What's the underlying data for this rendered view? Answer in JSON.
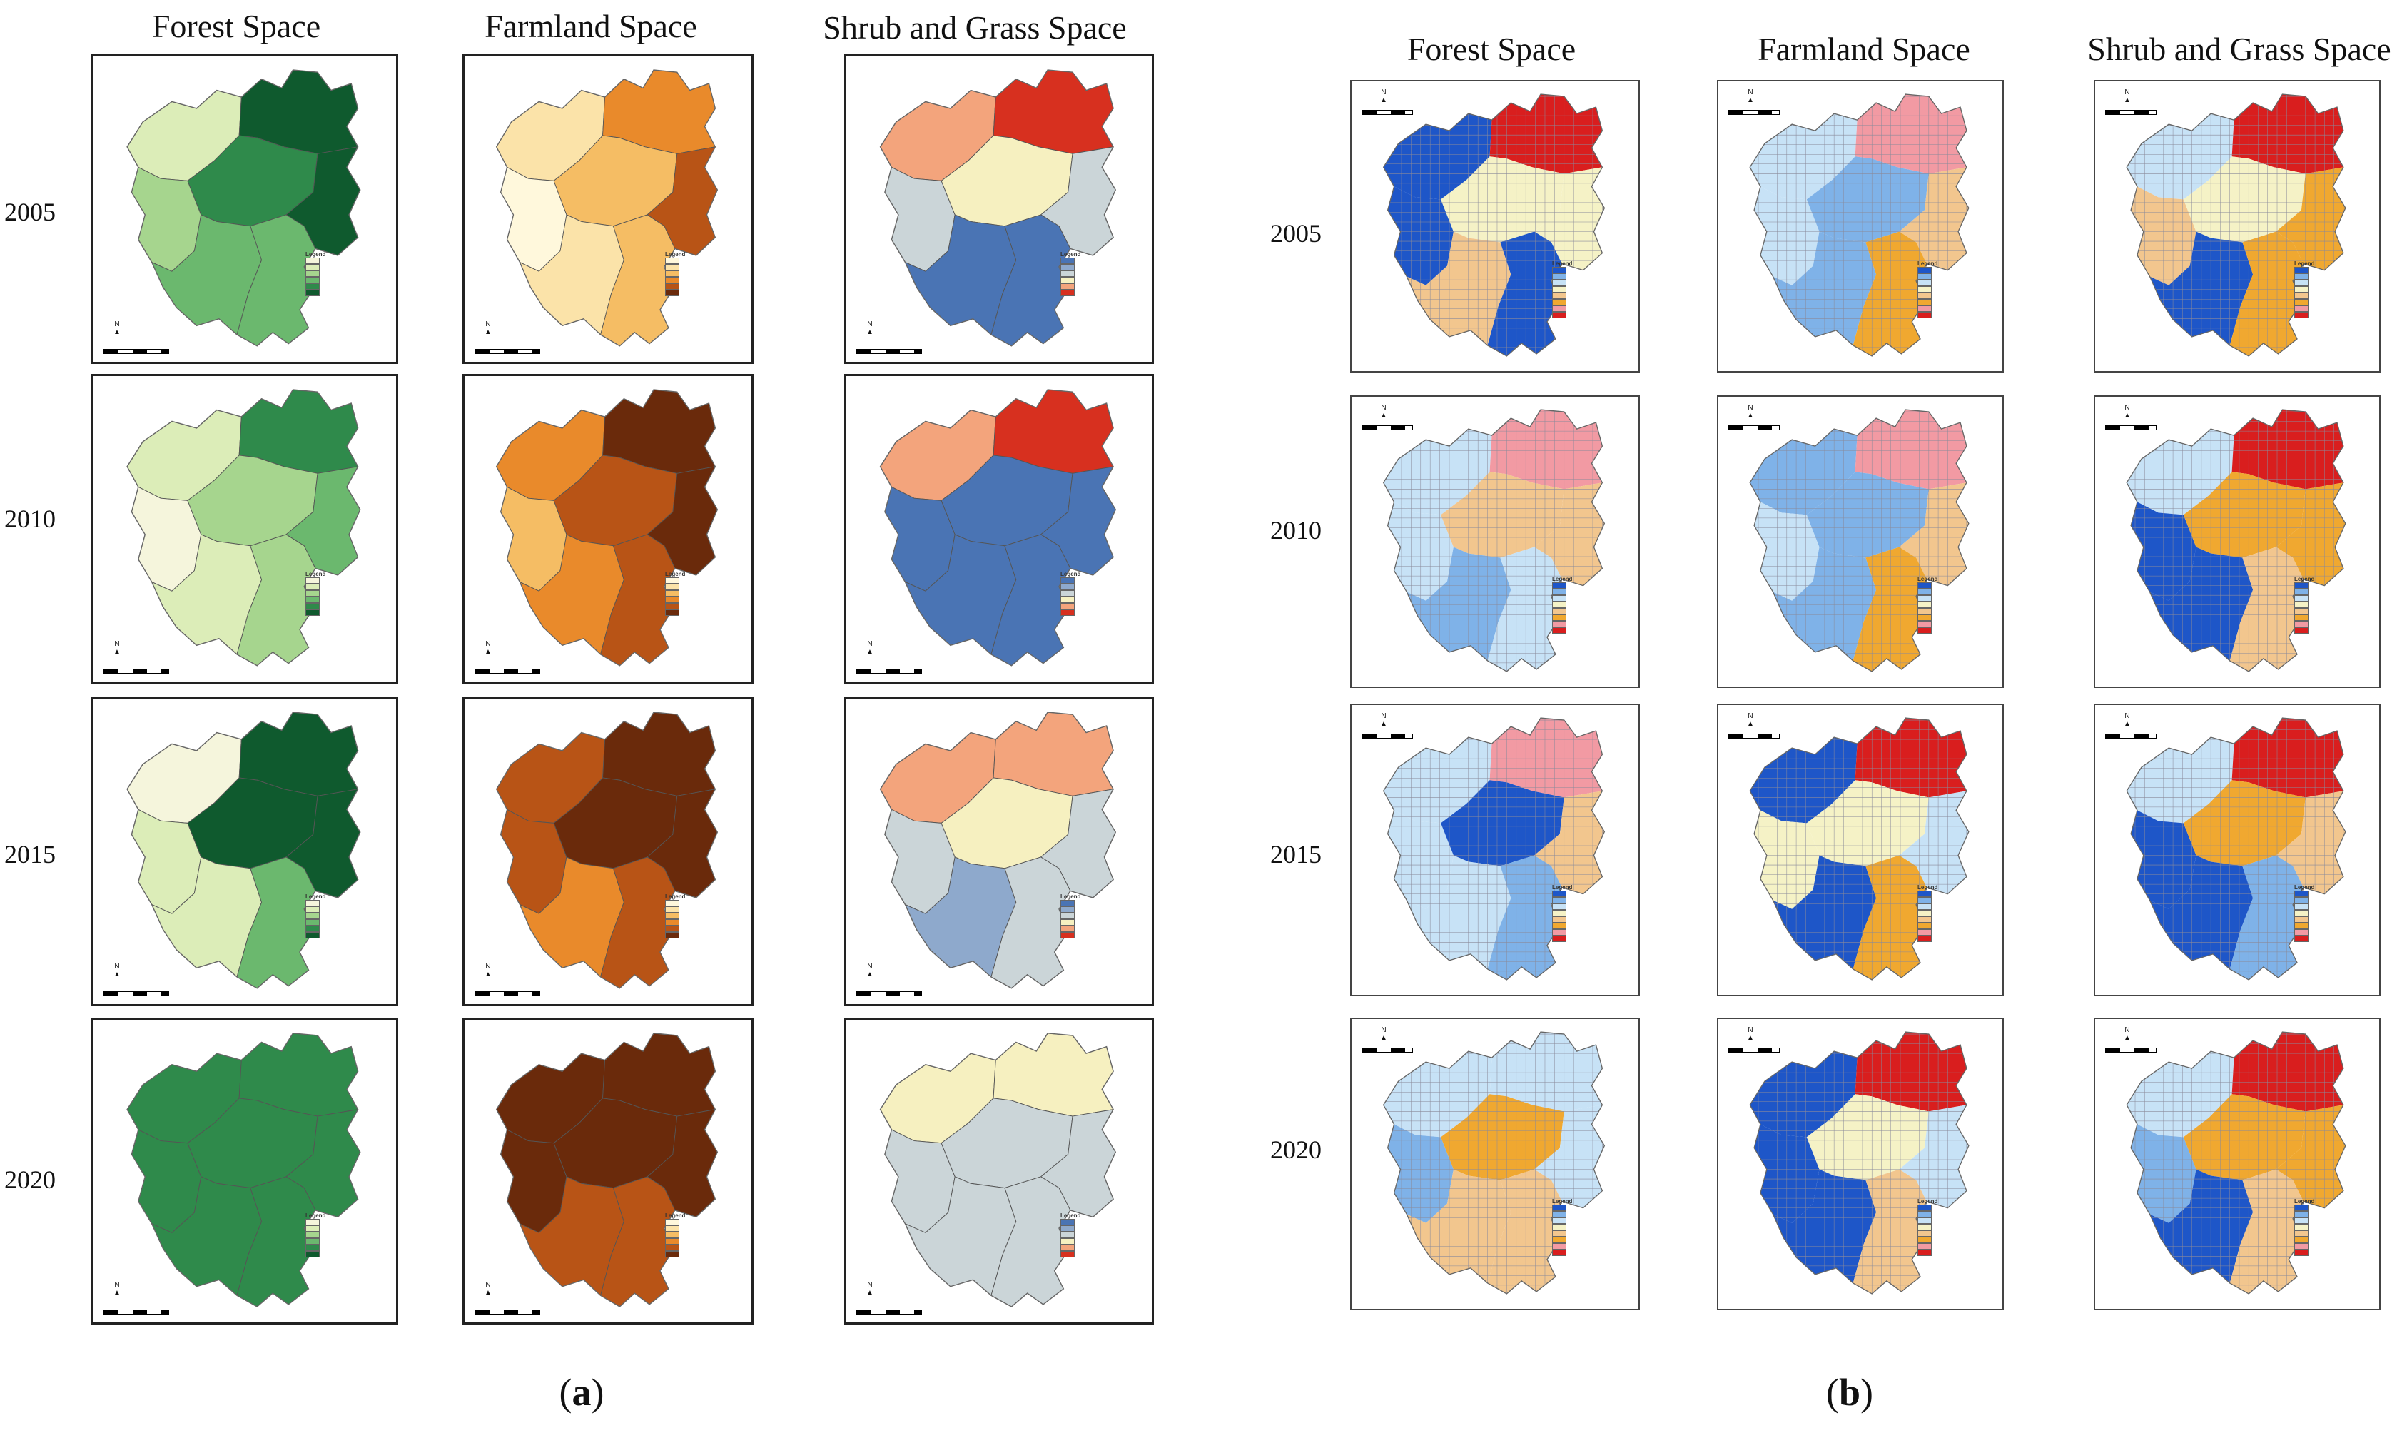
{
  "panel_a": {
    "label": "a",
    "column_titles": [
      "Forest Space",
      "Farmland Space",
      "Shrub and Grass Space"
    ],
    "row_labels": [
      "2005",
      "2010",
      "2015",
      "2020"
    ]
  },
  "panel_b": {
    "label": "b",
    "column_titles": [
      "Forest Space",
      "Farmland Space",
      "Shrub and Grass Space"
    ],
    "row_labels": [
      "2005",
      "2010",
      "2015",
      "2020"
    ]
  },
  "legend_title": "Legend",
  "north_arrow": "N",
  "colors": {
    "forest": [
      "#f5f5dc",
      "#dcedb8",
      "#a6d58e",
      "#6bb86e",
      "#2f8a4b",
      "#0f5a2e"
    ],
    "farmland": [
      "#fff8dc",
      "#fbe3a9",
      "#f5bd64",
      "#e98a2b",
      "#b85416",
      "#6a2a0b"
    ],
    "shrub": [
      "#4a74b4",
      "#8ea9cc",
      "#cbd5d8",
      "#f6f0c0",
      "#f3a47c",
      "#d7301f"
    ],
    "cluster": [
      "#1e56c8",
      "#7fb2e8",
      "#c7e2f6",
      "#f5f2c6",
      "#f2c68e",
      "#f0a830",
      "#f29aa3",
      "#d91e1e"
    ]
  }
}
